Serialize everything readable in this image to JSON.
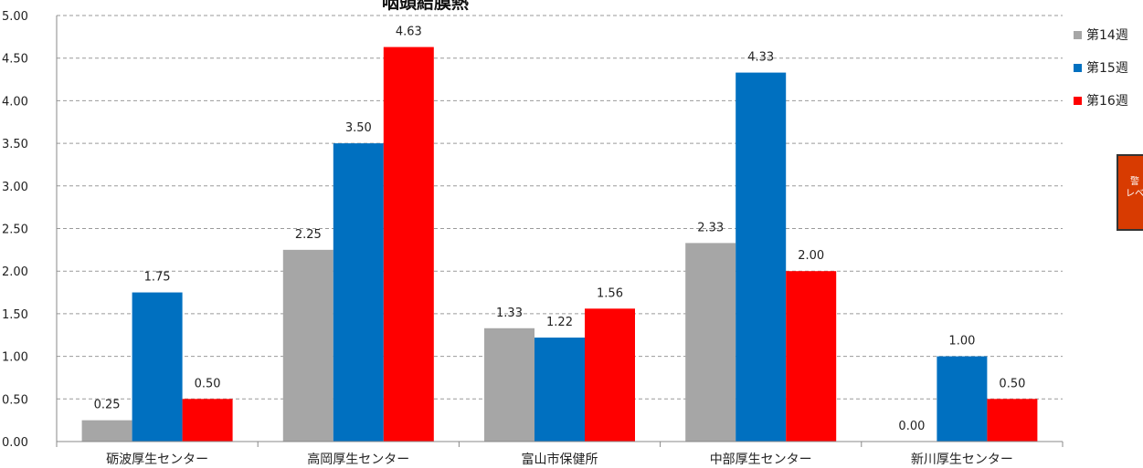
{
  "chart_data": {
    "type": "bar",
    "title": "咽頭結膜熱",
    "categories": [
      "砺波厚生センター",
      "高岡厚生センター",
      "富山市保健所",
      "中部厚生センター",
      "新川厚生センター"
    ],
    "series": [
      {
        "name": "第14週",
        "color": "#a6a6a6",
        "values": [
          0.25,
          2.25,
          1.33,
          2.33,
          0.0
        ]
      },
      {
        "name": "第15週",
        "color": "#0070c0",
        "values": [
          1.75,
          3.5,
          1.22,
          4.33,
          1.0
        ]
      },
      {
        "name": "第16週",
        "color": "#ff0000",
        "values": [
          0.5,
          4.63,
          1.56,
          2.0,
          0.5
        ]
      }
    ],
    "data_labels": [
      [
        "0.25",
        "1.75",
        "0.50"
      ],
      [
        "2.25",
        "3.50",
        "4.63"
      ],
      [
        "1.33",
        "1.22",
        "1.56"
      ],
      [
        "2.33",
        "4.33",
        "2.00"
      ],
      [
        "0.00",
        "1.00",
        "0.50"
      ]
    ],
    "ylim": [
      0,
      5
    ],
    "yticks": [
      "0.00",
      "0.50",
      "1.00",
      "1.50",
      "2.00",
      "2.50",
      "3.00",
      "3.50",
      "4.00",
      "4.50",
      "5.00"
    ],
    "grid": "dashed",
    "legend_position": "right"
  },
  "side_box": {
    "line1": "警",
    "line2": "レベ"
  }
}
